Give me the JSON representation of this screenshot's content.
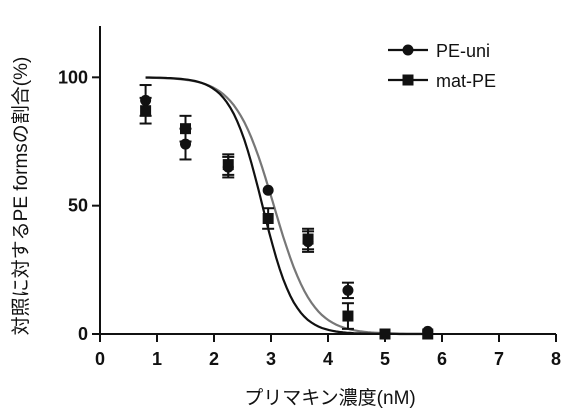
{
  "chart_data": {
    "type": "scatter",
    "title": "",
    "xlabel": "プリマキン濃度(nM)",
    "ylabel": "対照に対するPE formsの割合(%)",
    "xlim": [
      0,
      8
    ],
    "ylim": [
      0,
      120
    ],
    "xticks": [
      "0",
      "1",
      "2",
      "3",
      "4",
      "5",
      "6",
      "7",
      "8"
    ],
    "yticks": [
      "0",
      "50",
      "100"
    ],
    "grid": false,
    "legend_position": "top-right",
    "series": [
      {
        "name": "PE-uni",
        "marker": "circle",
        "color": "#111111",
        "fit_color": "#777777",
        "fit": {
          "top": 100,
          "bottom": 0,
          "log_ic50": 3.05,
          "hill": -1.3
        },
        "points": [
          {
            "x": 0.8,
            "y": 91,
            "err": 6
          },
          {
            "x": 1.5,
            "y": 74,
            "err": 6
          },
          {
            "x": 2.25,
            "y": 65,
            "err": 4
          },
          {
            "x": 2.95,
            "y": 56,
            "err": 0
          },
          {
            "x": 3.65,
            "y": 36,
            "err": 4
          },
          {
            "x": 4.35,
            "y": 17,
            "err": 3
          },
          {
            "x": 5.75,
            "y": 1,
            "err": 0
          }
        ]
      },
      {
        "name": "mat-PE",
        "marker": "square",
        "color": "#111111",
        "fit_color": "#111111",
        "fit": {
          "top": 100,
          "bottom": 0,
          "log_ic50": 2.85,
          "hill": -1.55
        },
        "points": [
          {
            "x": 0.8,
            "y": 87,
            "err": 5
          },
          {
            "x": 1.5,
            "y": 80,
            "err": 5
          },
          {
            "x": 2.25,
            "y": 66,
            "err": 4
          },
          {
            "x": 2.95,
            "y": 45,
            "err": 4
          },
          {
            "x": 3.65,
            "y": 37,
            "err": 4
          },
          {
            "x": 4.35,
            "y": 7,
            "err": 5
          },
          {
            "x": 5.0,
            "y": 0,
            "err": 0
          },
          {
            "x": 5.75,
            "y": 0,
            "err": 0
          }
        ]
      }
    ]
  }
}
